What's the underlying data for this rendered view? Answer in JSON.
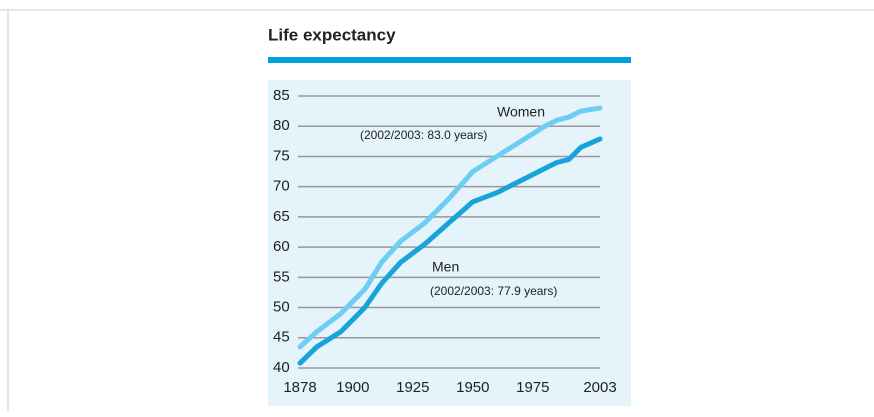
{
  "chart_data": {
    "type": "line",
    "title": "Life expectancy",
    "x": [
      1878,
      1885,
      1895,
      1905,
      1912,
      1920,
      1930,
      1940,
      1950,
      1960,
      1970,
      1980,
      1985,
      1990,
      1995,
      2003
    ],
    "series": [
      {
        "name": "Women",
        "color": "#6dcdf2",
        "values": [
          43.5,
          46,
          49,
          53,
          57.5,
          61,
          64,
          68,
          72.5,
          75,
          77.5,
          80,
          81,
          81.5,
          82.5,
          83
        ]
      },
      {
        "name": "Men",
        "color": "#18a3da",
        "values": [
          40.8,
          43.5,
          46,
          50,
          54,
          57.5,
          60.5,
          64,
          67.5,
          69,
          71,
          73,
          74,
          74.5,
          76.5,
          77.9
        ]
      }
    ],
    "annotations": [
      "(2002/2003: 83.0 years)",
      "(2002/2003: 77.9 years)"
    ],
    "xlim": [
      1878,
      2003
    ],
    "xticks": [
      1878,
      1900,
      1925,
      1950,
      1975,
      2003
    ],
    "ylim": [
      40,
      85
    ],
    "yticks": [
      40,
      45,
      50,
      55,
      60,
      65,
      70,
      75,
      80,
      85
    ],
    "grid": true
  }
}
